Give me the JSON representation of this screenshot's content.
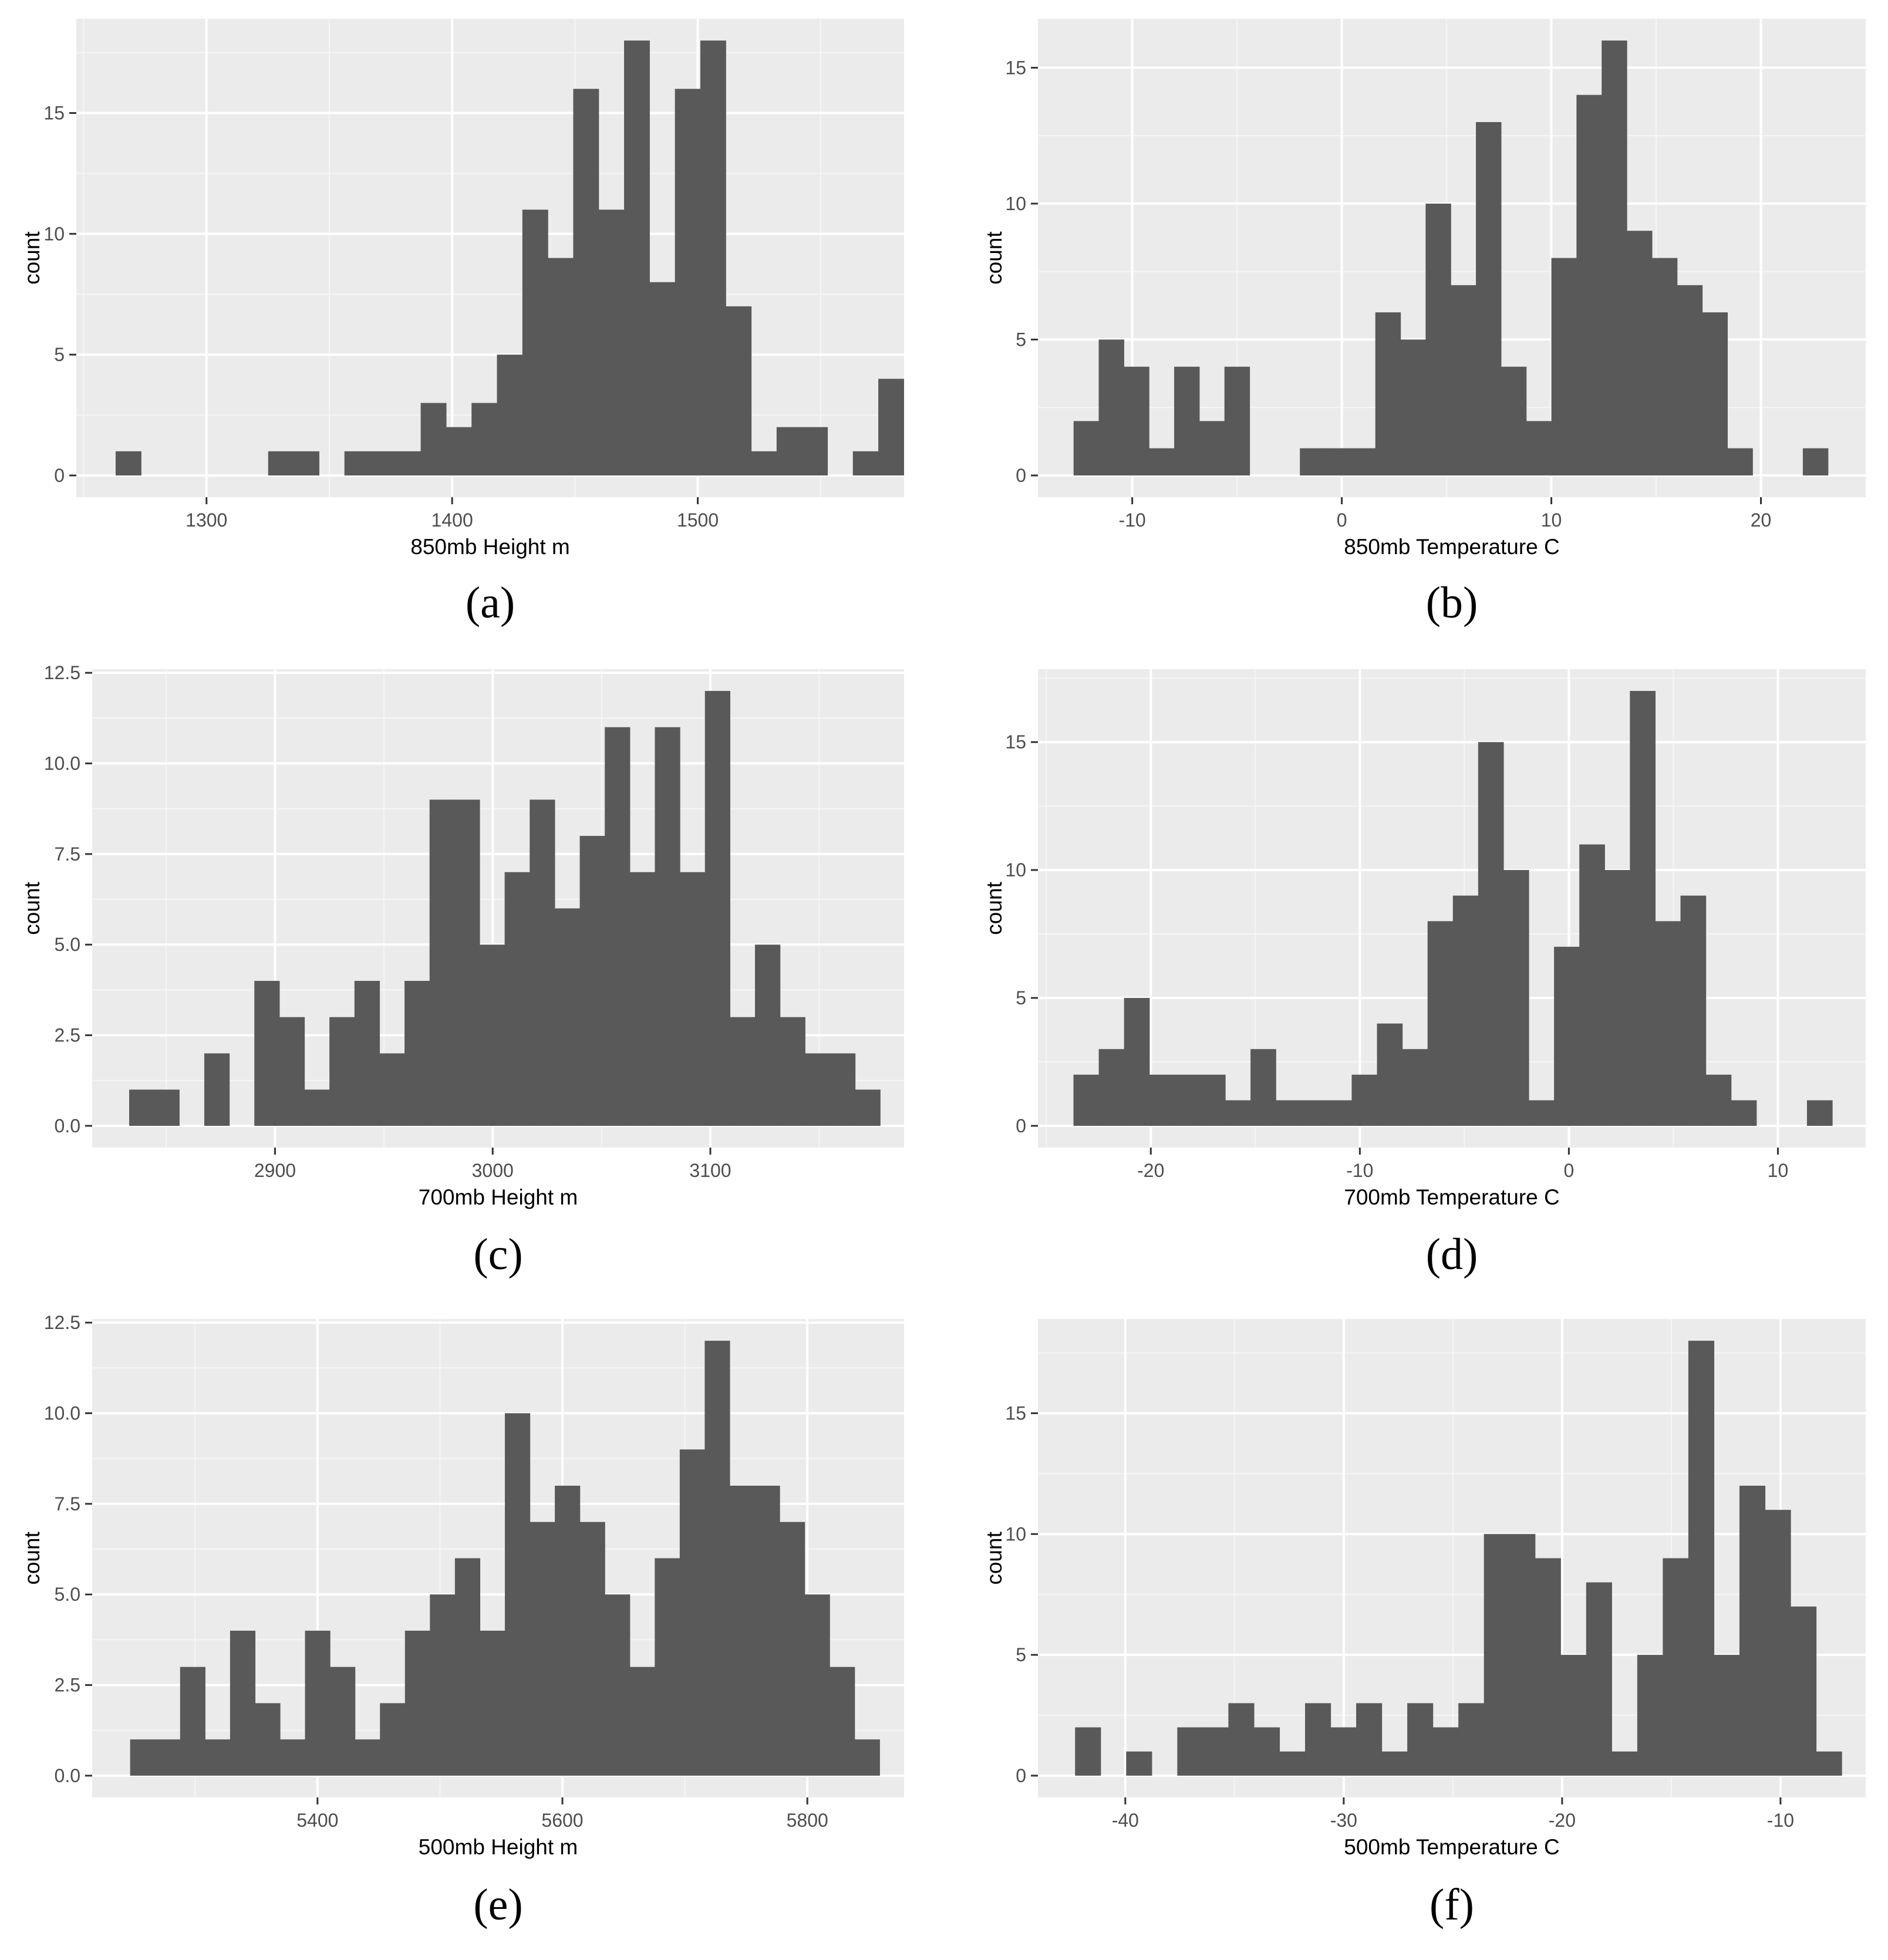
{
  "figure": {
    "captions": [
      "(a)",
      "(b)",
      "(c)",
      "(d)",
      "(e)",
      "(f)"
    ]
  },
  "colors": {
    "panel_background": "#ebebeb",
    "grid_major": "#ffffff",
    "grid_minor": "#f5f5f5",
    "bar_fill": "#595959",
    "tick_text": "#4d4d4d",
    "axis_text": "#000000"
  },
  "chart_data": [
    {
      "type": "bar",
      "caption": "(a)",
      "xlabel": "850mb Height m",
      "ylabel": "count",
      "x_ticks": [
        1300,
        1400,
        1500
      ],
      "y_ticks": [
        0,
        5,
        10,
        15
      ],
      "y_tick_labels": [
        "0",
        "5",
        "10",
        "15"
      ],
      "xlim": [
        1247,
        1584
      ],
      "ylim": [
        -0.9,
        18.9
      ],
      "bin_start": 1263,
      "bin_width": 10.35,
      "counts": [
        1,
        0,
        0,
        0,
        0,
        0,
        1,
        1,
        0,
        1,
        1,
        1,
        3,
        2,
        3,
        5,
        11,
        9,
        16,
        11,
        18,
        8,
        16,
        18,
        7,
        1,
        2,
        2,
        0,
        1,
        4
      ]
    },
    {
      "type": "bar",
      "caption": "(b)",
      "xlabel": "850mb Temperature C",
      "ylabel": "count",
      "x_ticks": [
        -10,
        0,
        10,
        20
      ],
      "y_ticks": [
        0,
        5,
        10,
        15
      ],
      "y_tick_labels": [
        "0",
        "5",
        "10",
        "15"
      ],
      "xlim": [
        -14.5,
        25.0
      ],
      "ylim": [
        -0.8,
        16.8
      ],
      "bin_start": -12.8,
      "bin_width": 1.2,
      "counts": [
        2,
        5,
        4,
        1,
        4,
        2,
        4,
        0,
        0,
        1,
        1,
        1,
        6,
        5,
        10,
        7,
        13,
        4,
        2,
        8,
        14,
        16,
        9,
        8,
        7,
        6,
        1,
        0,
        0,
        1
      ]
    },
    {
      "type": "bar",
      "caption": "(c)",
      "xlabel": "700mb Height m",
      "ylabel": "count",
      "x_ticks": [
        2900,
        3000,
        3100
      ],
      "y_ticks": [
        0,
        2.5,
        5,
        7.5,
        10,
        12.5
      ],
      "y_tick_labels": [
        "0.0",
        "2.5",
        "5.0",
        "7.5",
        "10.0",
        "12.5"
      ],
      "xlim": [
        2816,
        3189
      ],
      "ylim": [
        -0.6,
        12.6
      ],
      "bin_start": 2833,
      "bin_width": 11.5,
      "counts": [
        1,
        1,
        0,
        2,
        0,
        4,
        3,
        1,
        3,
        4,
        2,
        4,
        9,
        9,
        5,
        7,
        9,
        6,
        8,
        11,
        7,
        11,
        7,
        12,
        3,
        5,
        3,
        2,
        2,
        1
      ]
    },
    {
      "type": "bar",
      "caption": "(d)",
      "xlabel": "700mb Temperature C",
      "ylabel": "count",
      "x_ticks": [
        -20,
        -10,
        0,
        10
      ],
      "y_ticks": [
        0,
        5,
        10,
        15
      ],
      "y_tick_labels": [
        "0",
        "5",
        "10",
        "15"
      ],
      "xlim": [
        -25.4,
        14.2
      ],
      "ylim": [
        -0.85,
        17.85
      ],
      "bin_start": -23.7,
      "bin_width": 1.21,
      "counts": [
        2,
        3,
        5,
        2,
        2,
        2,
        1,
        3,
        1,
        1,
        1,
        2,
        4,
        3,
        8,
        9,
        15,
        10,
        1,
        7,
        11,
        10,
        17,
        8,
        9,
        2,
        1,
        0,
        0,
        1
      ]
    },
    {
      "type": "bar",
      "caption": "(e)",
      "xlabel": "500mb Height m",
      "ylabel": "count",
      "x_ticks": [
        5400,
        5600,
        5800
      ],
      "y_ticks": [
        0,
        2.5,
        5,
        7.5,
        10,
        12.5
      ],
      "y_tick_labels": [
        "0.0",
        "2.5",
        "5.0",
        "7.5",
        "10.0",
        "12.5"
      ],
      "xlim": [
        5216,
        5879
      ],
      "ylim": [
        -0.6,
        12.6
      ],
      "bin_start": 5247,
      "bin_width": 20.4,
      "counts": [
        1,
        1,
        3,
        1,
        4,
        2,
        1,
        4,
        3,
        1,
        2,
        4,
        5,
        6,
        4,
        10,
        7,
        8,
        7,
        5,
        3,
        6,
        9,
        12,
        8,
        8,
        7,
        5,
        3,
        1
      ]
    },
    {
      "type": "bar",
      "caption": "(f)",
      "xlabel": "500mb Temperature C",
      "ylabel": "count",
      "x_ticks": [
        -40,
        -30,
        -20,
        -10
      ],
      "y_ticks": [
        0,
        5,
        10,
        15
      ],
      "y_tick_labels": [
        "0",
        "5",
        "10",
        "15"
      ],
      "xlim": [
        -44.0,
        -6.1
      ],
      "ylim": [
        -0.9,
        18.9
      ],
      "bin_start": -42.3,
      "bin_width": 1.17,
      "counts": [
        2,
        0,
        1,
        0,
        2,
        2,
        3,
        2,
        1,
        3,
        2,
        3,
        1,
        3,
        2,
        3,
        10,
        10,
        9,
        5,
        8,
        1,
        5,
        9,
        18,
        5,
        12,
        11,
        7,
        1
      ]
    }
  ]
}
